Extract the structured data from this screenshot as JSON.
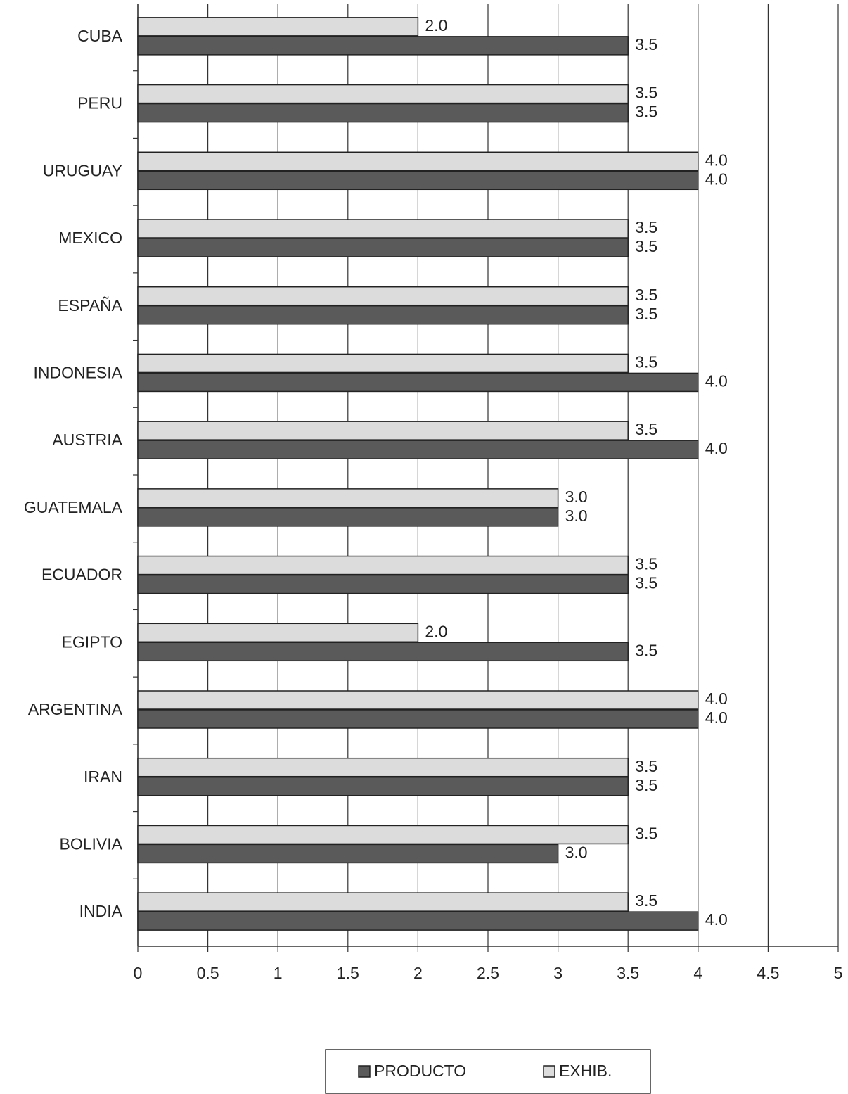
{
  "chart_data": {
    "type": "barh",
    "categories": [
      "CUBA",
      "PERU",
      "URUGUAY",
      "MEXICO",
      "ESPAÑA",
      "INDONESIA",
      "AUSTRIA",
      "GUATEMALA",
      "ECUADOR",
      "EGIPTO",
      "ARGENTINA",
      "IRAN",
      "BOLIVIA",
      "INDIA"
    ],
    "series": [
      {
        "name": "PRODUCTO",
        "color": "#5a5a5a",
        "values": [
          3.5,
          3.5,
          4,
          3.5,
          3.5,
          4,
          4,
          3,
          3.5,
          3.5,
          4,
          3.5,
          3,
          4
        ],
        "value_labels": [
          "3.5",
          "3.5",
          "4.0",
          "3.5",
          "3.5",
          "4.0",
          "4.0",
          "3.0",
          "3.5",
          "3.5",
          "4.0",
          "3.5",
          "3.0",
          "4.0"
        ]
      },
      {
        "name": "EXHIB.",
        "color": "#dcdcdc",
        "values": [
          2,
          3.5,
          4,
          3.5,
          3.5,
          3.5,
          3.5,
          3,
          3.5,
          2,
          4,
          3.5,
          3.5,
          3.5
        ],
        "value_labels": [
          "2.0",
          "3.5",
          "4.0",
          "3.5",
          "3.5",
          "3.5",
          "3.5",
          "3.0",
          "3.5",
          "2.0",
          "4.0",
          "3.5",
          "3.5",
          "3.5"
        ]
      }
    ],
    "xlim": [
      0,
      5
    ],
    "xticks": [
      0,
      0.5,
      1,
      1.5,
      2,
      2.5,
      3,
      3.5,
      4,
      4.5,
      5
    ],
    "grid": true,
    "legend": "bottom"
  }
}
